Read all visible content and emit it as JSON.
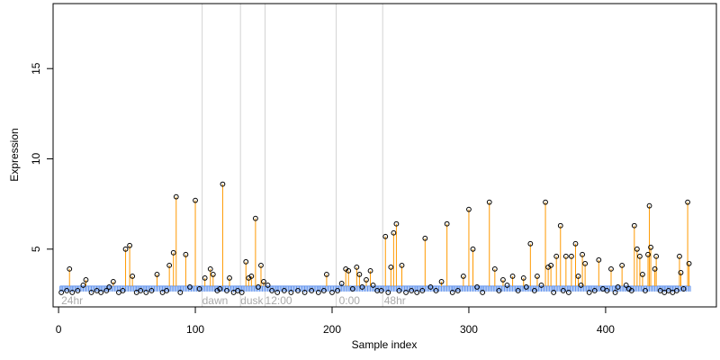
{
  "chart_data": {
    "type": "scatter",
    "xlabel": "Sample index",
    "ylabel": "Expression",
    "xlim": [
      -4,
      481
    ],
    "ylim": [
      1.8,
      18.6
    ],
    "x_ticks": [
      0,
      100,
      200,
      300,
      400
    ],
    "y_ticks": [
      5,
      10,
      15
    ],
    "grid": false,
    "annotations": [
      {
        "label": "24hr",
        "x": 2
      },
      {
        "label": "dawn",
        "x": 105
      },
      {
        "label": "dusk",
        "x": 133
      },
      {
        "label": "12:00",
        "x": 151
      },
      {
        "label": "0:00",
        "x": 205
      },
      {
        "label": "48hr",
        "x": 238
      }
    ],
    "vertical_lines": [
      105,
      133,
      151,
      203,
      237
    ],
    "baseline": {
      "label": "",
      "value": 2.95,
      "x_start": 1,
      "x_end": 462
    },
    "spike_points": [
      {
        "x": 8,
        "y": 3.9
      },
      {
        "x": 20,
        "y": 3.3
      },
      {
        "x": 40,
        "y": 3.2
      },
      {
        "x": 49,
        "y": 5.0
      },
      {
        "x": 52,
        "y": 5.2
      },
      {
        "x": 54,
        "y": 3.5
      },
      {
        "x": 72,
        "y": 3.6
      },
      {
        "x": 81,
        "y": 4.1
      },
      {
        "x": 84,
        "y": 4.8
      },
      {
        "x": 86,
        "y": 7.9
      },
      {
        "x": 93,
        "y": 4.7
      },
      {
        "x": 100,
        "y": 7.7
      },
      {
        "x": 107,
        "y": 3.4
      },
      {
        "x": 111,
        "y": 3.9
      },
      {
        "x": 113,
        "y": 3.6
      },
      {
        "x": 120,
        "y": 8.6
      },
      {
        "x": 125,
        "y": 3.4
      },
      {
        "x": 137,
        "y": 4.3
      },
      {
        "x": 139,
        "y": 3.4
      },
      {
        "x": 141,
        "y": 3.5
      },
      {
        "x": 144,
        "y": 6.7
      },
      {
        "x": 148,
        "y": 4.1
      },
      {
        "x": 150,
        "y": 3.2
      },
      {
        "x": 196,
        "y": 3.6
      },
      {
        "x": 210,
        "y": 3.9
      },
      {
        "x": 212,
        "y": 3.8
      },
      {
        "x": 218,
        "y": 4.0
      },
      {
        "x": 220,
        "y": 3.6
      },
      {
        "x": 225,
        "y": 3.3
      },
      {
        "x": 228,
        "y": 3.8
      },
      {
        "x": 239,
        "y": 5.7
      },
      {
        "x": 243,
        "y": 4.0
      },
      {
        "x": 245,
        "y": 5.9
      },
      {
        "x": 247,
        "y": 6.4
      },
      {
        "x": 251,
        "y": 4.1
      },
      {
        "x": 268,
        "y": 5.6
      },
      {
        "x": 280,
        "y": 3.2
      },
      {
        "x": 284,
        "y": 6.4
      },
      {
        "x": 296,
        "y": 3.5
      },
      {
        "x": 300,
        "y": 7.2
      },
      {
        "x": 303,
        "y": 5.0
      },
      {
        "x": 315,
        "y": 7.6
      },
      {
        "x": 319,
        "y": 3.9
      },
      {
        "x": 325,
        "y": 3.3
      },
      {
        "x": 332,
        "y": 3.5
      },
      {
        "x": 340,
        "y": 3.4
      },
      {
        "x": 345,
        "y": 5.3
      },
      {
        "x": 350,
        "y": 3.5
      },
      {
        "x": 356,
        "y": 7.6
      },
      {
        "x": 358,
        "y": 4.0
      },
      {
        "x": 360,
        "y": 4.1
      },
      {
        "x": 364,
        "y": 4.6
      },
      {
        "x": 367,
        "y": 6.3
      },
      {
        "x": 371,
        "y": 4.6
      },
      {
        "x": 375,
        "y": 4.6
      },
      {
        "x": 378,
        "y": 5.3
      },
      {
        "x": 380,
        "y": 3.5
      },
      {
        "x": 383,
        "y": 4.7
      },
      {
        "x": 385,
        "y": 4.2
      },
      {
        "x": 395,
        "y": 4.4
      },
      {
        "x": 404,
        "y": 3.9
      },
      {
        "x": 412,
        "y": 4.1
      },
      {
        "x": 421,
        "y": 6.3
      },
      {
        "x": 423,
        "y": 5.0
      },
      {
        "x": 425,
        "y": 4.6
      },
      {
        "x": 427,
        "y": 3.6
      },
      {
        "x": 431,
        "y": 4.7
      },
      {
        "x": 432,
        "y": 7.4
      },
      {
        "x": 433,
        "y": 5.1
      },
      {
        "x": 436,
        "y": 3.9
      },
      {
        "x": 437,
        "y": 4.6
      },
      {
        "x": 454,
        "y": 4.6
      },
      {
        "x": 455,
        "y": 3.7
      },
      {
        "x": 460,
        "y": 7.6
      },
      {
        "x": 461,
        "y": 4.2
      }
    ],
    "low_points": [
      {
        "x": 2,
        "y": 2.6
      },
      {
        "x": 6,
        "y": 2.7
      },
      {
        "x": 10,
        "y": 2.6
      },
      {
        "x": 14,
        "y": 2.7
      },
      {
        "x": 18,
        "y": 3.0
      },
      {
        "x": 24,
        "y": 2.6
      },
      {
        "x": 28,
        "y": 2.7
      },
      {
        "x": 31,
        "y": 2.6
      },
      {
        "x": 35,
        "y": 2.7
      },
      {
        "x": 37,
        "y": 2.9
      },
      {
        "x": 44,
        "y": 2.6
      },
      {
        "x": 47,
        "y": 2.7
      },
      {
        "x": 57,
        "y": 2.6
      },
      {
        "x": 60,
        "y": 2.7
      },
      {
        "x": 64,
        "y": 2.6
      },
      {
        "x": 68,
        "y": 2.7
      },
      {
        "x": 76,
        "y": 2.6
      },
      {
        "x": 79,
        "y": 2.7
      },
      {
        "x": 89,
        "y": 2.6
      },
      {
        "x": 96,
        "y": 2.9
      },
      {
        "x": 103,
        "y": 2.8
      },
      {
        "x": 116,
        "y": 2.7
      },
      {
        "x": 118,
        "y": 2.8
      },
      {
        "x": 123,
        "y": 2.7
      },
      {
        "x": 128,
        "y": 2.6
      },
      {
        "x": 131,
        "y": 2.7
      },
      {
        "x": 134,
        "y": 2.6
      },
      {
        "x": 146,
        "y": 2.9
      },
      {
        "x": 153,
        "y": 3.0
      },
      {
        "x": 156,
        "y": 2.7
      },
      {
        "x": 160,
        "y": 2.6
      },
      {
        "x": 165,
        "y": 2.7
      },
      {
        "x": 170,
        "y": 2.6
      },
      {
        "x": 175,
        "y": 2.7
      },
      {
        "x": 180,
        "y": 2.6
      },
      {
        "x": 185,
        "y": 2.7
      },
      {
        "x": 190,
        "y": 2.6
      },
      {
        "x": 194,
        "y": 2.7
      },
      {
        "x": 200,
        "y": 2.6
      },
      {
        "x": 204,
        "y": 2.7
      },
      {
        "x": 207,
        "y": 3.1
      },
      {
        "x": 215,
        "y": 2.8
      },
      {
        "x": 222,
        "y": 2.9
      },
      {
        "x": 230,
        "y": 3.0
      },
      {
        "x": 233,
        "y": 2.7
      },
      {
        "x": 236,
        "y": 2.7
      },
      {
        "x": 241,
        "y": 2.6
      },
      {
        "x": 249,
        "y": 2.7
      },
      {
        "x": 254,
        "y": 2.6
      },
      {
        "x": 258,
        "y": 2.7
      },
      {
        "x": 262,
        "y": 2.6
      },
      {
        "x": 266,
        "y": 2.7
      },
      {
        "x": 272,
        "y": 2.9
      },
      {
        "x": 276,
        "y": 2.7
      },
      {
        "x": 288,
        "y": 2.6
      },
      {
        "x": 292,
        "y": 2.7
      },
      {
        "x": 306,
        "y": 2.9
      },
      {
        "x": 310,
        "y": 2.6
      },
      {
        "x": 322,
        "y": 2.7
      },
      {
        "x": 328,
        "y": 3.0
      },
      {
        "x": 336,
        "y": 2.7
      },
      {
        "x": 342,
        "y": 2.9
      },
      {
        "x": 348,
        "y": 2.7
      },
      {
        "x": 353,
        "y": 3.0
      },
      {
        "x": 362,
        "y": 2.6
      },
      {
        "x": 369,
        "y": 2.7
      },
      {
        "x": 373,
        "y": 2.6
      },
      {
        "x": 382,
        "y": 3.0
      },
      {
        "x": 388,
        "y": 2.6
      },
      {
        "x": 392,
        "y": 2.7
      },
      {
        "x": 398,
        "y": 2.8
      },
      {
        "x": 401,
        "y": 2.7
      },
      {
        "x": 407,
        "y": 2.6
      },
      {
        "x": 409,
        "y": 2.9
      },
      {
        "x": 415,
        "y": 3.0
      },
      {
        "x": 417,
        "y": 2.8
      },
      {
        "x": 419,
        "y": 2.7
      },
      {
        "x": 429,
        "y": 2.7
      },
      {
        "x": 440,
        "y": 2.7
      },
      {
        "x": 443,
        "y": 2.6
      },
      {
        "x": 446,
        "y": 2.7
      },
      {
        "x": 449,
        "y": 2.6
      },
      {
        "x": 452,
        "y": 2.7
      },
      {
        "x": 457,
        "y": 2.8
      }
    ],
    "colors": {
      "spike_stem": "#ff9900",
      "low_stem": "#6495ed",
      "baseline": "#6495ed",
      "vline": "#d3d3d3",
      "annotation": "#aaaaaa",
      "point": "#000000"
    }
  }
}
